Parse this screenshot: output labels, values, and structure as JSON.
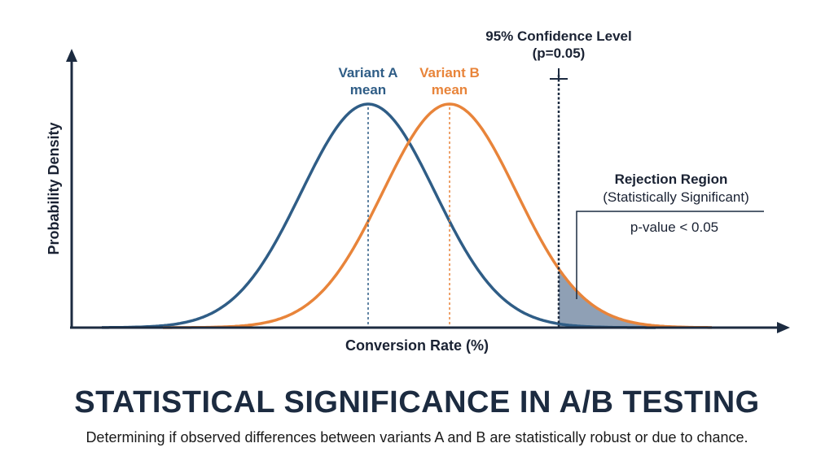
{
  "colors": {
    "axis": "#1c2b40",
    "variant_a": "#2f5d86",
    "variant_b": "#e8843a",
    "rejection_fill": "#8fa0b5",
    "text": "#1a2233"
  },
  "chart_data": {
    "type": "line",
    "xlabel": "Conversion Rate (%)",
    "ylabel": "Probability Density",
    "series": [
      {
        "name": "Variant A",
        "mean_label": [
          "Variant A",
          "mean"
        ],
        "color": "#2f5d86"
      },
      {
        "name": "Variant B",
        "mean_label": [
          "Variant B",
          "mean"
        ],
        "color": "#e8843a"
      }
    ],
    "threshold": {
      "label_line1": "95% Confidence Level",
      "label_line2": "(p=0.05)"
    },
    "rejection_region": {
      "title": "Rejection Region",
      "subtitle": "(Statistically Significant)",
      "note": "p-value < 0.05"
    }
  },
  "title": "STATISTICAL SIGNIFICANCE IN A/B TESTING",
  "subtitle": "Determining if observed differences between variants A and B are statistically robust or due to chance."
}
